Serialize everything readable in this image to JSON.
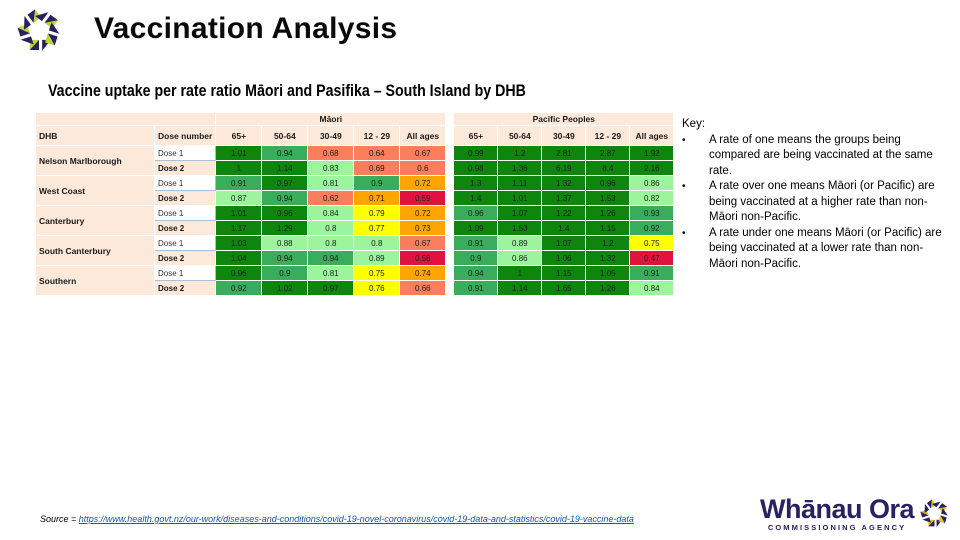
{
  "colors": {
    "brand_navy": "#272262",
    "brand_lime": "#c3d530",
    "brand_gold": "#e8c41d",
    "header_beige": "#fde9d9",
    "link_blue": "#1155cc",
    "scale": {
      "g1": "#0e860e",
      "g2": "#39ad5b",
      "g3": "#9cf59c",
      "y": "#ffff00",
      "o": "#ffa500",
      "s": "#f97e5e",
      "r": "#e01240"
    }
  },
  "header": {
    "title": "Vaccination Analysis"
  },
  "subtitle": "Vaccine uptake per rate ratio Māori and Pasifika – South Island by DHB",
  "table": {
    "corner_label": "DHB",
    "dose_label": "Dose number",
    "groups": [
      {
        "label": "Māori"
      },
      {
        "label": "Pacific Peoples"
      }
    ],
    "age_headers": [
      "65+",
      "50-64",
      "30-49",
      "12 - 29",
      "All ages"
    ],
    "dhbs": [
      {
        "name": "Nelson Marlborough",
        "doses": [
          {
            "label": "Dose 1",
            "maori": [
              {
                "v": "1.01",
                "c": "g1"
              },
              {
                "v": "0.94",
                "c": "g2"
              },
              {
                "v": "0.68",
                "c": "s"
              },
              {
                "v": "0.64",
                "c": "s"
              },
              {
                "v": "0.67",
                "c": "s"
              }
            ],
            "pacific": [
              {
                "v": "0.99",
                "c": "g1"
              },
              {
                "v": "1.2",
                "c": "g1"
              },
              {
                "v": "2.81",
                "c": "g1"
              },
              {
                "v": "2.87",
                "c": "g1"
              },
              {
                "v": "1.92",
                "c": "g1"
              }
            ]
          },
          {
            "label": "Dose 2",
            "maori": [
              {
                "v": "1",
                "c": "g1"
              },
              {
                "v": "1.14",
                "c": "g1"
              },
              {
                "v": "0.83",
                "c": "g3"
              },
              {
                "v": "0.69",
                "c": "s"
              },
              {
                "v": "0.6",
                "c": "s"
              }
            ],
            "pacific": [
              {
                "v": "0.98",
                "c": "g1"
              },
              {
                "v": "1.36",
                "c": "g1"
              },
              {
                "v": "6.19",
                "c": "g1"
              },
              {
                "v": "8.4",
                "c": "g1"
              },
              {
                "v": "2.16",
                "c": "g1"
              }
            ]
          }
        ]
      },
      {
        "name": "West Coast",
        "doses": [
          {
            "label": "Dose 1",
            "maori": [
              {
                "v": "0.91",
                "c": "g2"
              },
              {
                "v": "0.97",
                "c": "g1"
              },
              {
                "v": "0.81",
                "c": "g3"
              },
              {
                "v": "0.9",
                "c": "g2"
              },
              {
                "v": "0.72",
                "c": "o"
              }
            ],
            "pacific": [
              {
                "v": "1.3",
                "c": "g1"
              },
              {
                "v": "1.11",
                "c": "g1"
              },
              {
                "v": "1.32",
                "c": "g1"
              },
              {
                "v": "0.96",
                "c": "g1"
              },
              {
                "v": "0.86",
                "c": "g3"
              }
            ]
          },
          {
            "label": "Dose 2",
            "maori": [
              {
                "v": "0.87",
                "c": "g3"
              },
              {
                "v": "0.94",
                "c": "g2"
              },
              {
                "v": "0.62",
                "c": "s"
              },
              {
                "v": "0.71",
                "c": "o"
              },
              {
                "v": "0.59",
                "c": "r"
              }
            ],
            "pacific": [
              {
                "v": "1.4",
                "c": "g1"
              },
              {
                "v": "1.01",
                "c": "g1"
              },
              {
                "v": "1.37",
                "c": "g1"
              },
              {
                "v": "1.53",
                "c": "g1"
              },
              {
                "v": "0.82",
                "c": "g3"
              }
            ]
          }
        ]
      },
      {
        "name": "Canterbury",
        "doses": [
          {
            "label": "Dose 1",
            "maori": [
              {
                "v": "1.01",
                "c": "g1"
              },
              {
                "v": "0.96",
                "c": "g1"
              },
              {
                "v": "0.84",
                "c": "g3"
              },
              {
                "v": "0.79",
                "c": "y"
              },
              {
                "v": "0.72",
                "c": "o"
              }
            ],
            "pacific": [
              {
                "v": "0.96",
                "c": "g2"
              },
              {
                "v": "1.07",
                "c": "g1"
              },
              {
                "v": "1.22",
                "c": "g1"
              },
              {
                "v": "1.26",
                "c": "g1"
              },
              {
                "v": "0.93",
                "c": "g2"
              }
            ]
          },
          {
            "label": "Dose 2",
            "maori": [
              {
                "v": "1.17",
                "c": "g1"
              },
              {
                "v": "1.29",
                "c": "g1"
              },
              {
                "v": "0.8",
                "c": "g3"
              },
              {
                "v": "0.77",
                "c": "y"
              },
              {
                "v": "0.73",
                "c": "o"
              }
            ],
            "pacific": [
              {
                "v": "1.09",
                "c": "g1"
              },
              {
                "v": "1.53",
                "c": "g1"
              },
              {
                "v": "1.4",
                "c": "g1"
              },
              {
                "v": "1.15",
                "c": "g1"
              },
              {
                "v": "0.92",
                "c": "g2"
              }
            ]
          }
        ]
      },
      {
        "name": "South Canterbury",
        "doses": [
          {
            "label": "Dose 1",
            "maori": [
              {
                "v": "1.03",
                "c": "g1"
              },
              {
                "v": "0.88",
                "c": "g3"
              },
              {
                "v": "0.8",
                "c": "g3"
              },
              {
                "v": "0.8",
                "c": "g3"
              },
              {
                "v": "0.67",
                "c": "s"
              }
            ],
            "pacific": [
              {
                "v": "0.91",
                "c": "g2"
              },
              {
                "v": "0.89",
                "c": "g3"
              },
              {
                "v": "1.07",
                "c": "g1"
              },
              {
                "v": "1.2",
                "c": "g1"
              },
              {
                "v": "0.75",
                "c": "y"
              }
            ]
          },
          {
            "label": "Dose 2",
            "maori": [
              {
                "v": "1.04",
                "c": "g1"
              },
              {
                "v": "0.94",
                "c": "g2"
              },
              {
                "v": "0.94",
                "c": "g2"
              },
              {
                "v": "0.89",
                "c": "g3"
              },
              {
                "v": "0.58",
                "c": "r"
              }
            ],
            "pacific": [
              {
                "v": "0.9",
                "c": "g2"
              },
              {
                "v": "0.86",
                "c": "g3"
              },
              {
                "v": "1.06",
                "c": "g1"
              },
              {
                "v": "1.32",
                "c": "g1"
              },
              {
                "v": "0.47",
                "c": "r"
              }
            ]
          }
        ]
      },
      {
        "name": "Southern",
        "doses": [
          {
            "label": "Dose 1",
            "maori": [
              {
                "v": "0.96",
                "c": "g1"
              },
              {
                "v": "0.9",
                "c": "g2"
              },
              {
                "v": "0.81",
                "c": "g3"
              },
              {
                "v": "0.75",
                "c": "y"
              },
              {
                "v": "0.74",
                "c": "o"
              }
            ],
            "pacific": [
              {
                "v": "0.94",
                "c": "g2"
              },
              {
                "v": "1",
                "c": "g1"
              },
              {
                "v": "1.15",
                "c": "g1"
              },
              {
                "v": "1.05",
                "c": "g1"
              },
              {
                "v": "0.91",
                "c": "g2"
              }
            ]
          },
          {
            "label": "Dose 2",
            "maori": [
              {
                "v": "0.92",
                "c": "g2"
              },
              {
                "v": "1.02",
                "c": "g1"
              },
              {
                "v": "0.97",
                "c": "g1"
              },
              {
                "v": "0.76",
                "c": "y"
              },
              {
                "v": "0.66",
                "c": "s"
              }
            ],
            "pacific": [
              {
                "v": "0.91",
                "c": "g2"
              },
              {
                "v": "1.14",
                "c": "g1"
              },
              {
                "v": "1.65",
                "c": "g1"
              },
              {
                "v": "1.26",
                "c": "g1"
              },
              {
                "v": "0.84",
                "c": "g3"
              }
            ]
          }
        ]
      }
    ]
  },
  "key": {
    "title": "Key:",
    "bullets": [
      "A rate of one means the groups being compared are being vaccinated at the same rate.",
      "A rate over one means Māori (or Pacific) are being vaccinated at a higher rate than non-Māori non-Pacific.",
      "A rate under one means Māori (or Pacific) are being vaccinated at a lower rate than non-Māori non-Pacific."
    ]
  },
  "source": {
    "prefix": "Source = ",
    "url": "https://www.health.govt.nz/our-work/diseases-and-conditions/covid-19-novel-coronavirus/covid-19-data-and-statistics/covid-19-vaccine-data"
  },
  "footer_logo": {
    "name": "Whānau Ora",
    "tagline": "COMMISSIONING AGENCY"
  }
}
